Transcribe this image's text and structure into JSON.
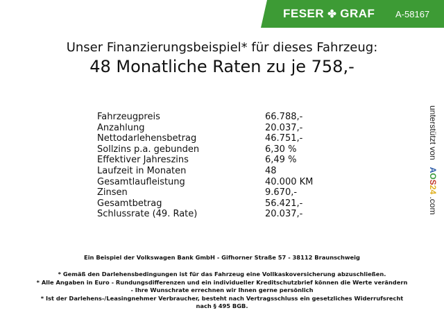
{
  "header": {
    "brand_left": "FESER",
    "brand_right": "GRAF",
    "brand_icon": "clover-icon",
    "code": "A-58167",
    "color": "#3d9b35"
  },
  "title": {
    "line1": "Unser Finanzierungsbeispiel* für dieses Fahrzeug:",
    "line2": "48 Monatliche Raten zu je 758,-"
  },
  "rows": [
    {
      "label": "Fahrzeugpreis",
      "value": "66.788,-"
    },
    {
      "label": "Anzahlung",
      "value": "20.037,-"
    },
    {
      "label": "Nettodarlehensbetrag",
      "value": "46.751,-"
    },
    {
      "label": "Sollzins p.a. gebunden",
      "value": "6,30 %"
    },
    {
      "label": "Effektiver Jahreszins",
      "value": "6,49 %"
    },
    {
      "label": "Laufzeit in Monaten",
      "value": "48"
    },
    {
      "label": "Gesamtlaufleistung",
      "value": "40.000 KM"
    },
    {
      "label": "Zinsen",
      "value": "9.670,-"
    },
    {
      "label": "Gesamtbetrag",
      "value": "56.421,-"
    },
    {
      "label": "Schlussrate (49. Rate)",
      "value": "20.037,-"
    }
  ],
  "side": {
    "prefix": "unterstützt von",
    "logo": "AOS24",
    "suffix": ".com"
  },
  "footer": {
    "bank": "Ein Beispiel der Volkswagen Bank GmbH - Gifhorner Straße 57 - 38112 Braunschweig",
    "note1": "* Gemäß den Darlehensbedingungen ist für das Fahrzeug eine Vollkaskoversicherung abzuschließen.",
    "note2a": "* Alle Angaben in Euro - Rundungsdifferenzen und ein individueller Kreditschutzbrief können die Werte verändern",
    "note2b": "- Ihre Wunschrate errechnen wir Ihnen gerne persönlich",
    "note3a": "* Ist der Darlehens-/Leasingnehmer Verbraucher, besteht nach Vertragsschluss ein gesetzliches Widerrufsrecht",
    "note3b": "nach § 495 BGB."
  }
}
